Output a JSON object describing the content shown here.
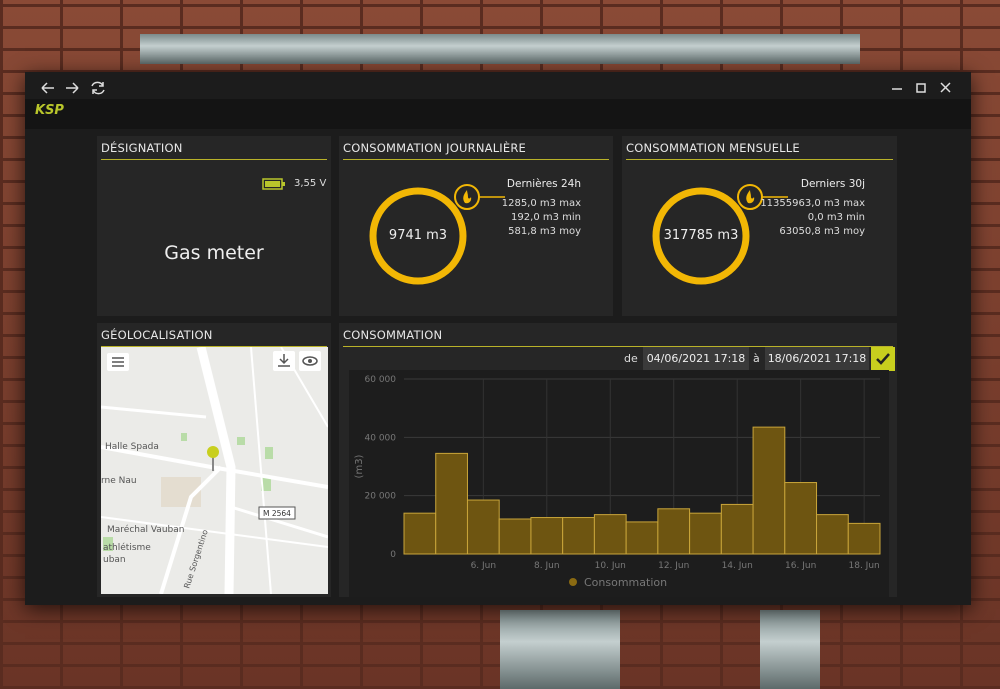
{
  "window": {
    "logo": "KSP"
  },
  "designation": {
    "title": "DÉSIGNATION",
    "battery": "3,55 V",
    "name": "Gas meter"
  },
  "daily": {
    "title": "CONSOMMATION JOURNALIÈRE",
    "total": "9741 m3",
    "period": "Dernières 24h",
    "max": "1285,0 m3 max",
    "min": "192,0 m3 min",
    "avg": "581,8 m3 moy"
  },
  "monthly": {
    "title": "CONSOMMATION MENSUELLE",
    "total": "317785 m3",
    "period": "Derniers 30j",
    "max": "11355963,0 m3 max",
    "min": "0,0 m3 min",
    "avg": "63050,8 m3 moy"
  },
  "geolocation": {
    "title": "GÉOLOCALISATION",
    "labels": [
      "Halle Spada",
      "rne Nau",
      "Maréchal Vauban",
      "athlétisme",
      "uban",
      "M 2564",
      "Rue Sorgentino"
    ]
  },
  "consumption": {
    "title": "CONSOMMATION",
    "from_label": "de",
    "from": "04/06/2021 17:18",
    "to_label": "à",
    "to": "18/06/2021 17:18"
  },
  "chart_data": {
    "type": "bar",
    "y_label": "(m3)",
    "categories": [
      null,
      null,
      "6. Jun",
      null,
      "8. Jun",
      null,
      "10. Jun",
      null,
      "12. Jun",
      null,
      "14. Jun",
      null,
      "16. Jun",
      null,
      "18. Jun"
    ],
    "series": [
      {
        "name": "Consommation",
        "color": "#6e5511",
        "values": [
          14000,
          34500,
          18500,
          12000,
          12500,
          12500,
          13500,
          11000,
          15500,
          14000,
          17000,
          43500,
          24500,
          13500,
          10500
        ]
      }
    ],
    "ylim": [
      0,
      60000
    ],
    "yticks": [
      0,
      {
        "value": 20000,
        "label": "20 000"
      },
      {
        "value": 40000,
        "label": "40 000"
      },
      {
        "value": 60000,
        "label": "60 000"
      }
    ],
    "grid": true
  }
}
